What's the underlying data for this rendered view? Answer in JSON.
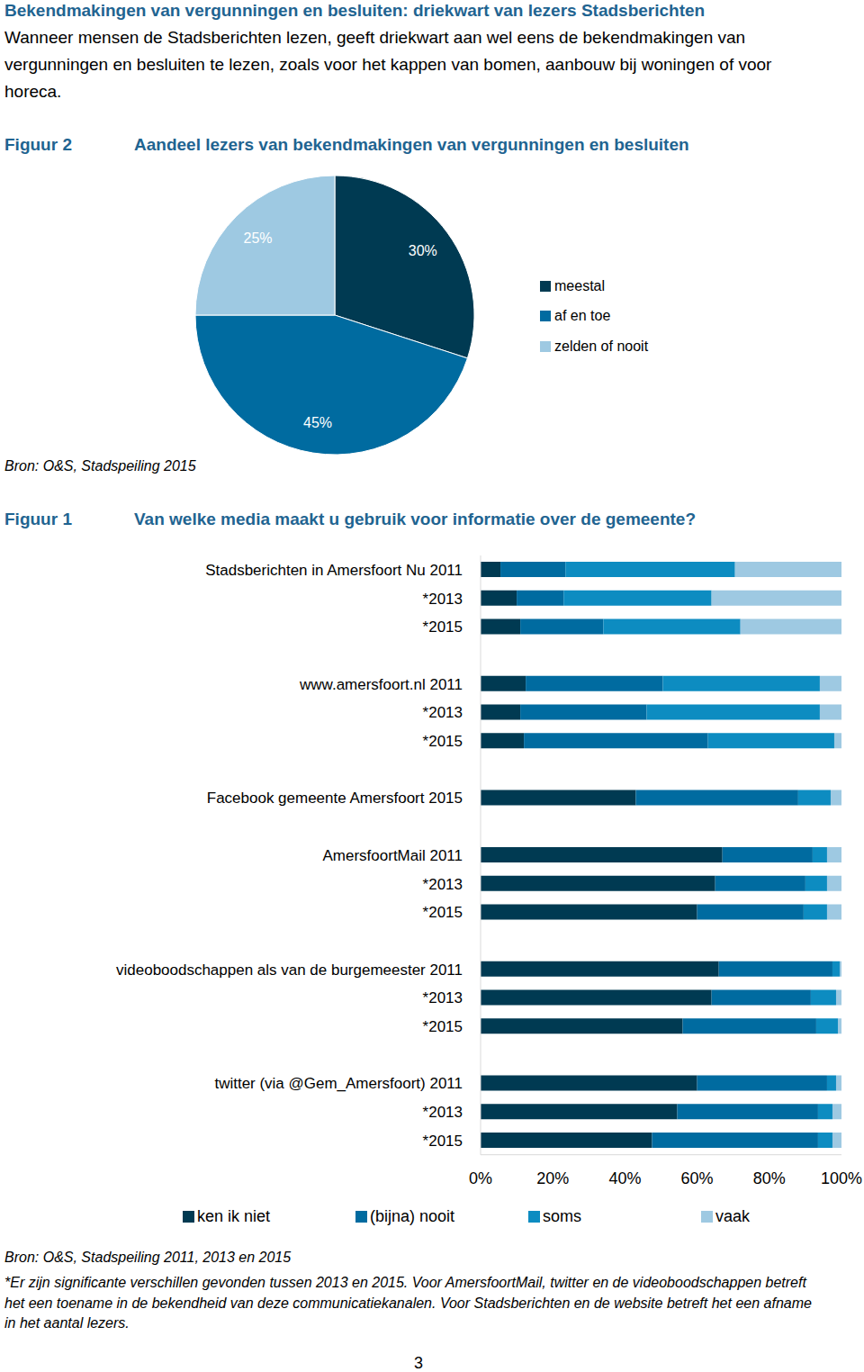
{
  "heading": "Bekendmakingen van vergunningen en besluiten: driekwart van lezers Stadsberichten",
  "intro": "Wanneer mensen de Stadsberichten lezen, geeft driekwart aan wel eens de bekendmakingen van vergunningen en besluiten te lezen, zoals voor het kappen van bomen, aanbouw bij woningen of voor horeca.",
  "page_number": 3,
  "chart_data": [
    {
      "type": "pie",
      "figure_label": "Figuur 2",
      "title": "Aandeel lezers van bekendmakingen van vergunningen en besluiten",
      "categories": [
        "meestal",
        "af en toe",
        "zelden of nooit"
      ],
      "values": [
        30,
        45,
        25
      ],
      "value_labels": [
        "30%",
        "45%",
        "25%"
      ],
      "colors": [
        "#003a52",
        "#006ba0",
        "#9ec9e2"
      ],
      "data_labels": true,
      "legend": "right",
      "source": "Bron: O&S, Stadspeiling 2015"
    },
    {
      "type": "bar",
      "orientation": "horizontal",
      "stacked": true,
      "figure_label": "Figuur 1",
      "title": "Van welke media maakt u gebruik voor informatie over de gemeente?",
      "categories": [
        "Stadsberichten in Amersfoort Nu 2011",
        "*2013",
        "*2015",
        null,
        "www.amersfoort.nl 2011",
        "*2013",
        "*2015",
        null,
        "Facebook gemeente Amersfoort 2015",
        null,
        "AmersfoortMail 2011",
        "*2013",
        "*2015",
        null,
        "videoboodschappen als van de burgemeester 2011",
        "*2013",
        "*2015",
        null,
        "twitter (via @Gem_Amersfoort) 2011",
        "*2013",
        "*2015"
      ],
      "series": [
        {
          "name": "ken ik niet",
          "color": "#003a52",
          "values": [
            5.5,
            10,
            11,
            null,
            12.5,
            11,
            12,
            null,
            43,
            null,
            67,
            65,
            60,
            null,
            66,
            64,
            56,
            null,
            60,
            54.5,
            47.5
          ]
        },
        {
          "name": "(bijna) nooit",
          "color": "#006ba0",
          "values": [
            18,
            13,
            23,
            null,
            38,
            35,
            51,
            null,
            45,
            null,
            25,
            25,
            29.5,
            null,
            31.5,
            27.5,
            37,
            null,
            36,
            39,
            46
          ]
        },
        {
          "name": "soms",
          "color": "#0d8cc1",
          "values": [
            47,
            41,
            38,
            null,
            43.5,
            48,
            35,
            null,
            9,
            null,
            4,
            6,
            6.5,
            null,
            2,
            7,
            6,
            null,
            2.5,
            4,
            4
          ]
        },
        {
          "name": "vaak",
          "color": "#9ec9e2",
          "values": [
            29.5,
            36,
            28,
            null,
            6,
            6,
            2,
            null,
            3,
            null,
            4,
            4,
            4,
            null,
            0.5,
            1.5,
            1,
            null,
            1.5,
            2.5,
            2.5
          ]
        }
      ],
      "xlim": [
        0,
        100
      ],
      "xticks": [
        {
          "value": 0,
          "label": "0%"
        },
        {
          "value": 20,
          "label": "20%"
        },
        {
          "value": 40,
          "label": "40%"
        },
        {
          "value": 60,
          "label": "60%"
        },
        {
          "value": 80,
          "label": "80%"
        },
        {
          "value": 100,
          "label": "100%"
        }
      ],
      "legend": "bottom",
      "source": "Bron: O&S, Stadspeiling 2011, 2013 en 2015",
      "note": "*Er zijn significante verschillen gevonden tussen 2013 en 2015. Voor AmersfoortMail, twitter en de videoboodschappen betreft het een toename in de bekendheid van deze communicatiekanalen. Voor Stadsberichten en de website betreft het een afname in het aantal lezers."
    }
  ]
}
